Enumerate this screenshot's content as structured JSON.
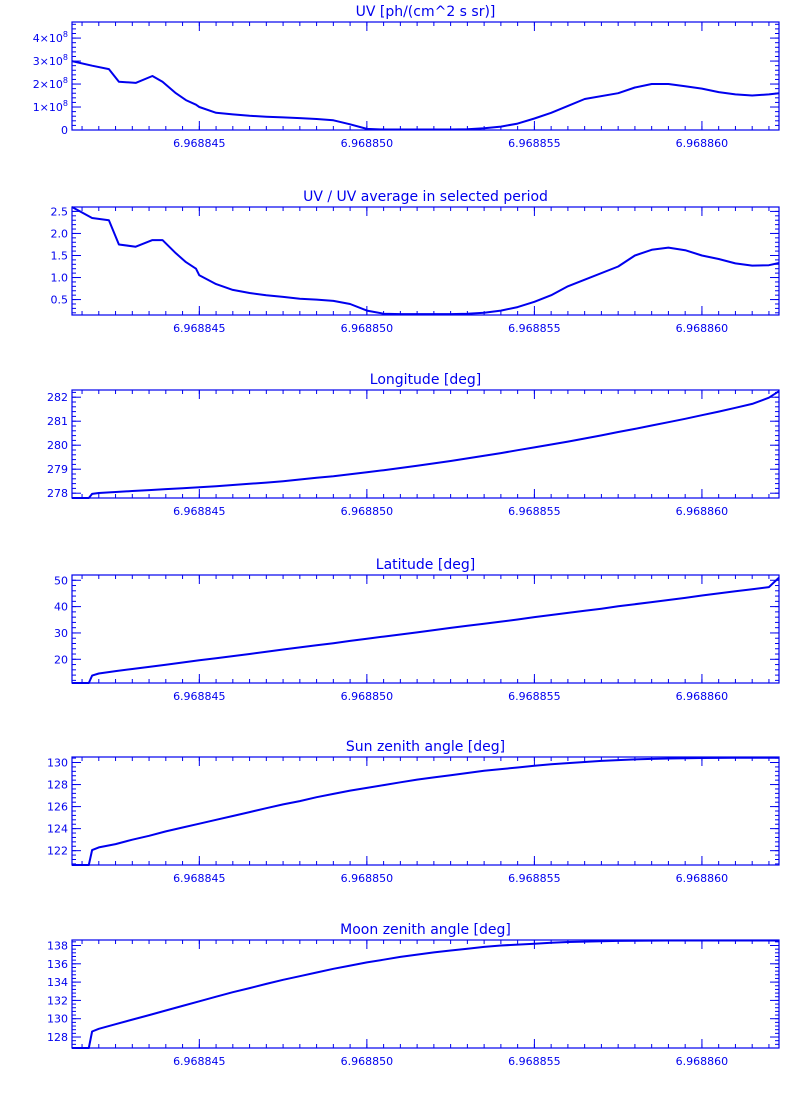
{
  "palette": {
    "line": "#0000ee",
    "background": "#ffffff"
  },
  "chart_data": [
    {
      "type": "line",
      "title": "UV [ph/(cm^2 s sr)]",
      "xlim": [
        6.9688412,
        6.9688623
      ],
      "ylim": [
        0,
        470000000.0
      ],
      "xticks": [
        "6.968845",
        "6.968850",
        "6.968855",
        "6.968860"
      ],
      "yticks": [
        {
          "v": 0,
          "m": "0",
          "e": ""
        },
        {
          "v": 100000000.0,
          "m": "1×10",
          "e": "8"
        },
        {
          "v": 200000000.0,
          "m": "2×10",
          "e": "8"
        },
        {
          "v": 300000000.0,
          "m": "3×10",
          "e": "8"
        },
        {
          "v": 400000000.0,
          "m": "4×10",
          "e": "8"
        }
      ],
      "x": [
        6.9688412,
        6.9688418,
        6.9688423,
        6.9688426,
        6.9688431,
        6.9688436,
        6.9688439,
        6.9688443,
        6.9688446,
        6.9688449,
        6.968845,
        6.9688455,
        6.968846,
        6.9688465,
        6.968847,
        6.9688475,
        6.968848,
        6.9688485,
        6.968849,
        6.9688495,
        6.96885,
        6.9688505,
        6.968851,
        6.9688515,
        6.968852,
        6.9688525,
        6.968853,
        6.9688535,
        6.968854,
        6.9688545,
        6.968855,
        6.9688555,
        6.968856,
        6.9688565,
        6.9688575,
        6.968858,
        6.9688585,
        6.968859,
        6.9688595,
        6.96886,
        6.9688605,
        6.968861,
        6.9688615,
        6.968862,
        6.9688623
      ],
      "y": [
        300000000.0,
        280000000.0,
        265000000.0,
        210000000.0,
        205000000.0,
        235000000.0,
        210000000.0,
        160000000.0,
        130000000.0,
        110000000.0,
        100000000.0,
        75000000.0,
        68000000.0,
        62000000.0,
        58000000.0,
        55000000.0,
        52000000.0,
        48000000.0,
        42000000.0,
        25000000.0,
        5000000.0,
        2000000.0,
        2000000.0,
        2000000.0,
        2000000.0,
        2000000.0,
        3000000.0,
        8000000.0,
        15000000.0,
        28000000.0,
        50000000.0,
        75000000.0,
        105000000.0,
        135000000.0,
        160000000.0,
        185000000.0,
        200000000.0,
        200000000.0,
        190000000.0,
        180000000.0,
        165000000.0,
        155000000.0,
        150000000.0,
        155000000.0,
        160000000.0
      ]
    },
    {
      "type": "line",
      "title": "UV / UV average in selected period",
      "xlim": [
        6.9688412,
        6.9688623
      ],
      "ylim": [
        0.15,
        2.6
      ],
      "xticks": [
        "6.968845",
        "6.968850",
        "6.968855",
        "6.968860"
      ],
      "yticks": [
        {
          "v": 0.5,
          "m": "0.5",
          "e": ""
        },
        {
          "v": 1.0,
          "m": "1.0",
          "e": ""
        },
        {
          "v": 1.5,
          "m": "1.5",
          "e": ""
        },
        {
          "v": 2.0,
          "m": "2.0",
          "e": ""
        },
        {
          "v": 2.5,
          "m": "2.5",
          "e": ""
        }
      ],
      "x": [
        6.9688412,
        6.9688418,
        6.9688423,
        6.9688426,
        6.9688431,
        6.9688436,
        6.9688439,
        6.9688443,
        6.9688446,
        6.9688449,
        6.968845,
        6.9688455,
        6.968846,
        6.9688465,
        6.968847,
        6.9688475,
        6.968848,
        6.9688485,
        6.968849,
        6.9688495,
        6.96885,
        6.9688505,
        6.968851,
        6.9688515,
        6.968852,
        6.9688525,
        6.968853,
        6.9688535,
        6.968854,
        6.9688545,
        6.968855,
        6.9688555,
        6.968856,
        6.9688565,
        6.9688575,
        6.968858,
        6.9688585,
        6.968859,
        6.9688595,
        6.96886,
        6.9688605,
        6.968861,
        6.9688615,
        6.968862,
        6.9688623
      ],
      "y": [
        2.6,
        2.35,
        2.3,
        1.75,
        1.7,
        1.85,
        1.85,
        1.55,
        1.35,
        1.2,
        1.05,
        0.85,
        0.72,
        0.65,
        0.6,
        0.56,
        0.52,
        0.5,
        0.47,
        0.4,
        0.25,
        0.18,
        0.17,
        0.17,
        0.17,
        0.17,
        0.18,
        0.2,
        0.25,
        0.33,
        0.45,
        0.6,
        0.8,
        0.95,
        1.25,
        1.5,
        1.63,
        1.68,
        1.62,
        1.5,
        1.42,
        1.32,
        1.27,
        1.28,
        1.33
      ]
    },
    {
      "type": "line",
      "title": "Longitude [deg]",
      "xlim": [
        6.9688412,
        6.9688623
      ],
      "ylim": [
        277.8,
        282.3
      ],
      "xticks": [
        "6.968845",
        "6.968850",
        "6.968855",
        "6.968860"
      ],
      "yticks": [
        {
          "v": 278,
          "m": "278",
          "e": ""
        },
        {
          "v": 279,
          "m": "279",
          "e": ""
        },
        {
          "v": 280,
          "m": "280",
          "e": ""
        },
        {
          "v": 281,
          "m": "281",
          "e": ""
        },
        {
          "v": 282,
          "m": "282",
          "e": ""
        }
      ],
      "x": [
        6.9688412,
        6.9688417,
        6.9688418,
        6.968842,
        6.9688425,
        6.968843,
        6.9688435,
        6.968844,
        6.9688445,
        6.968845,
        6.9688455,
        6.968846,
        6.9688465,
        6.968847,
        6.9688475,
        6.968848,
        6.9688485,
        6.968849,
        6.9688495,
        6.96885,
        6.9688505,
        6.968851,
        6.9688515,
        6.968852,
        6.9688525,
        6.968853,
        6.9688535,
        6.968854,
        6.9688545,
        6.968855,
        6.9688555,
        6.968856,
        6.9688565,
        6.968857,
        6.9688575,
        6.968858,
        6.9688585,
        6.968859,
        6.9688595,
        6.96886,
        6.9688605,
        6.968861,
        6.9688615,
        6.968862,
        6.9688623
      ],
      "y": [
        277.8,
        277.8,
        277.97,
        278.01,
        278.05,
        278.09,
        278.13,
        278.17,
        278.21,
        278.25,
        278.29,
        278.34,
        278.39,
        278.44,
        278.5,
        278.57,
        278.64,
        278.71,
        278.79,
        278.87,
        278.96,
        279.05,
        279.14,
        279.24,
        279.34,
        279.45,
        279.56,
        279.67,
        279.79,
        279.91,
        280.03,
        280.15,
        280.28,
        280.41,
        280.55,
        280.68,
        280.82,
        280.96,
        281.1,
        281.25,
        281.4,
        281.56,
        281.72,
        281.98,
        282.25
      ]
    },
    {
      "type": "line",
      "title": "Latitude [deg]",
      "xlim": [
        6.9688412,
        6.9688623
      ],
      "ylim": [
        11,
        52
      ],
      "xticks": [
        "6.968845",
        "6.968850",
        "6.968855",
        "6.968860"
      ],
      "yticks": [
        {
          "v": 20,
          "m": "20",
          "e": ""
        },
        {
          "v": 30,
          "m": "30",
          "e": ""
        },
        {
          "v": 40,
          "m": "40",
          "e": ""
        },
        {
          "v": 50,
          "m": "50",
          "e": ""
        }
      ],
      "x": [
        6.9688412,
        6.9688417,
        6.9688418,
        6.968842,
        6.9688425,
        6.968843,
        6.9688435,
        6.968844,
        6.9688445,
        6.968845,
        6.9688455,
        6.968846,
        6.9688465,
        6.968847,
        6.9688475,
        6.968848,
        6.9688485,
        6.968849,
        6.9688495,
        6.96885,
        6.9688505,
        6.968851,
        6.9688515,
        6.968852,
        6.9688525,
        6.968853,
        6.9688535,
        6.968854,
        6.9688545,
        6.968855,
        6.9688555,
        6.968856,
        6.9688565,
        6.968857,
        6.9688575,
        6.968858,
        6.9688585,
        6.968859,
        6.9688595,
        6.96886,
        6.9688605,
        6.968861,
        6.9688615,
        6.968862,
        6.9688623
      ],
      "y": [
        11,
        11,
        13.8,
        14.6,
        15.5,
        16.3,
        17.1,
        17.9,
        18.8,
        19.6,
        20.4,
        21.2,
        22.0,
        22.9,
        23.7,
        24.5,
        25.3,
        26.1,
        27.0,
        27.8,
        28.6,
        29.4,
        30.2,
        31.1,
        31.9,
        32.7,
        33.5,
        34.3,
        35.1,
        36.0,
        36.8,
        37.6,
        38.4,
        39.2,
        40.1,
        40.9,
        41.7,
        42.5,
        43.3,
        44.2,
        45.0,
        45.8,
        46.6,
        47.4,
        51.0
      ]
    },
    {
      "type": "line",
      "title": "Sun zenith angle [deg]",
      "xlim": [
        6.9688412,
        6.9688623
      ],
      "ylim": [
        120.7,
        130.5
      ],
      "xticks": [
        "6.968845",
        "6.968850",
        "6.968855",
        "6.968860"
      ],
      "yticks": [
        {
          "v": 122,
          "m": "122",
          "e": ""
        },
        {
          "v": 124,
          "m": "124",
          "e": ""
        },
        {
          "v": 126,
          "m": "126",
          "e": ""
        },
        {
          "v": 128,
          "m": "128",
          "e": ""
        },
        {
          "v": 130,
          "m": "130",
          "e": ""
        }
      ],
      "x": [
        6.9688412,
        6.9688417,
        6.9688418,
        6.968842,
        6.9688425,
        6.968843,
        6.9688435,
        6.968844,
        6.9688445,
        6.968845,
        6.9688455,
        6.968846,
        6.9688465,
        6.968847,
        6.9688475,
        6.968848,
        6.9688485,
        6.968849,
        6.9688495,
        6.96885,
        6.9688505,
        6.968851,
        6.9688515,
        6.968852,
        6.9688525,
        6.968853,
        6.9688535,
        6.968854,
        6.9688545,
        6.968855,
        6.9688555,
        6.968856,
        6.9688565,
        6.968857,
        6.9688575,
        6.968858,
        6.9688585,
        6.968859,
        6.9688595,
        6.96886,
        6.9688605,
        6.968861,
        6.9688615,
        6.968862,
        6.9688623
      ],
      "y": [
        120.7,
        120.7,
        122.05,
        122.3,
        122.6,
        123.0,
        123.35,
        123.75,
        124.1,
        124.45,
        124.8,
        125.15,
        125.5,
        125.85,
        126.2,
        126.5,
        126.85,
        127.15,
        127.45,
        127.7,
        127.95,
        128.2,
        128.45,
        128.65,
        128.85,
        129.05,
        129.25,
        129.4,
        129.55,
        129.7,
        129.85,
        129.95,
        130.05,
        130.15,
        130.22,
        130.28,
        130.33,
        130.36,
        130.39,
        130.41,
        130.42,
        130.43,
        130.43,
        130.43,
        130.43
      ]
    },
    {
      "type": "line",
      "title": "Moon zenith angle [deg]",
      "xlim": [
        6.9688412,
        6.9688623
      ],
      "ylim": [
        126.8,
        138.6
      ],
      "xticks": [
        "6.968845",
        "6.968850",
        "6.968855",
        "6.968860"
      ],
      "yticks": [
        {
          "v": 128,
          "m": "128",
          "e": ""
        },
        {
          "v": 130,
          "m": "130",
          "e": ""
        },
        {
          "v": 132,
          "m": "132",
          "e": ""
        },
        {
          "v": 134,
          "m": "134",
          "e": ""
        },
        {
          "v": 136,
          "m": "136",
          "e": ""
        },
        {
          "v": 138,
          "m": "138",
          "e": ""
        }
      ],
      "x": [
        6.9688412,
        6.9688417,
        6.9688418,
        6.968842,
        6.9688425,
        6.968843,
        6.9688435,
        6.968844,
        6.9688445,
        6.968845,
        6.9688455,
        6.968846,
        6.9688465,
        6.968847,
        6.9688475,
        6.968848,
        6.9688485,
        6.968849,
        6.9688495,
        6.96885,
        6.9688505,
        6.968851,
        6.9688515,
        6.968852,
        6.9688525,
        6.968853,
        6.9688535,
        6.968854,
        6.9688545,
        6.968855,
        6.9688555,
        6.968856,
        6.9688565,
        6.968857,
        6.9688575,
        6.968858,
        6.9688585,
        6.968859,
        6.9688595,
        6.96886,
        6.9688605,
        6.968861,
        6.9688615,
        6.968862,
        6.9688623
      ],
      "y": [
        126.8,
        126.8,
        128.6,
        128.9,
        129.4,
        129.9,
        130.4,
        130.9,
        131.4,
        131.9,
        132.4,
        132.9,
        133.35,
        133.8,
        134.25,
        134.65,
        135.05,
        135.45,
        135.8,
        136.15,
        136.45,
        136.75,
        137.0,
        137.25,
        137.45,
        137.65,
        137.85,
        138.0,
        138.1,
        138.2,
        138.3,
        138.38,
        138.43,
        138.47,
        138.5,
        138.52,
        138.53,
        138.54,
        138.54,
        138.54,
        138.54,
        138.54,
        138.54,
        138.54,
        138.54
      ]
    }
  ]
}
